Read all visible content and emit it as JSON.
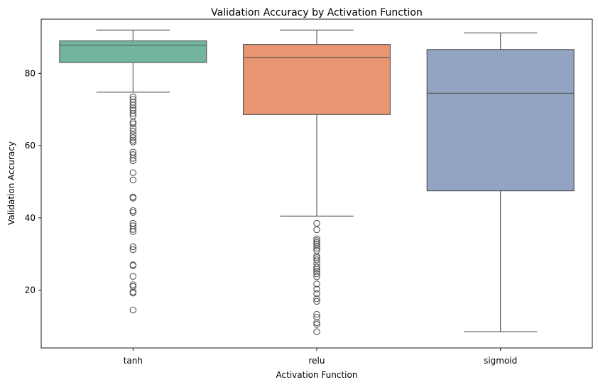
{
  "chart_data": {
    "type": "box",
    "title": "Validation Accuracy by Activation Function",
    "xlabel": "Activation Function",
    "ylabel": "Validation Accuracy",
    "ylim": [
      4,
      95
    ],
    "yticks": [
      20,
      40,
      60,
      80
    ],
    "grid": false,
    "categories": [
      "tanh",
      "relu",
      "sigmoid"
    ],
    "colors": [
      "#72b49e",
      "#e99572",
      "#93a3c3"
    ],
    "line_color": "#555555",
    "boxes": [
      {
        "category": "tanh",
        "whisker_low": 74.8,
        "q1": 83.0,
        "median": 87.8,
        "q3": 89.0,
        "whisker_high": 92.0,
        "outliers": [
          73.5,
          72.8,
          72.0,
          71.2,
          70.4,
          69.8,
          68.9,
          68.2,
          66.5,
          66.0,
          64.8,
          64.0,
          63.0,
          62.2,
          61.5,
          61.0,
          58.2,
          57.5,
          56.5,
          55.8,
          52.5,
          50.5,
          45.8,
          45.5,
          42.0,
          41.5,
          38.5,
          37.8,
          36.8,
          36.2,
          32.0,
          31.2,
          27.0,
          26.8,
          23.8,
          21.5,
          21.0,
          19.5,
          19.2,
          14.5
        ]
      },
      {
        "category": "relu",
        "whisker_low": 40.5,
        "q1": 68.6,
        "median": 84.4,
        "q3": 88.0,
        "whisker_high": 92.0,
        "outliers": [
          38.5,
          36.7,
          34.2,
          33.7,
          33.2,
          32.7,
          32.2,
          31.6,
          31.0,
          29.4,
          29.0,
          28.4,
          27.4,
          26.4,
          25.8,
          25.2,
          24.5,
          23.7,
          21.7,
          20.3,
          19.0,
          17.6,
          16.9,
          13.3,
          12.5,
          11.0,
          10.5,
          8.5
        ]
      },
      {
        "category": "sigmoid",
        "whisker_low": 8.5,
        "q1": 47.5,
        "median": 74.5,
        "q3": 86.6,
        "whisker_high": 91.2,
        "outliers": []
      }
    ]
  }
}
